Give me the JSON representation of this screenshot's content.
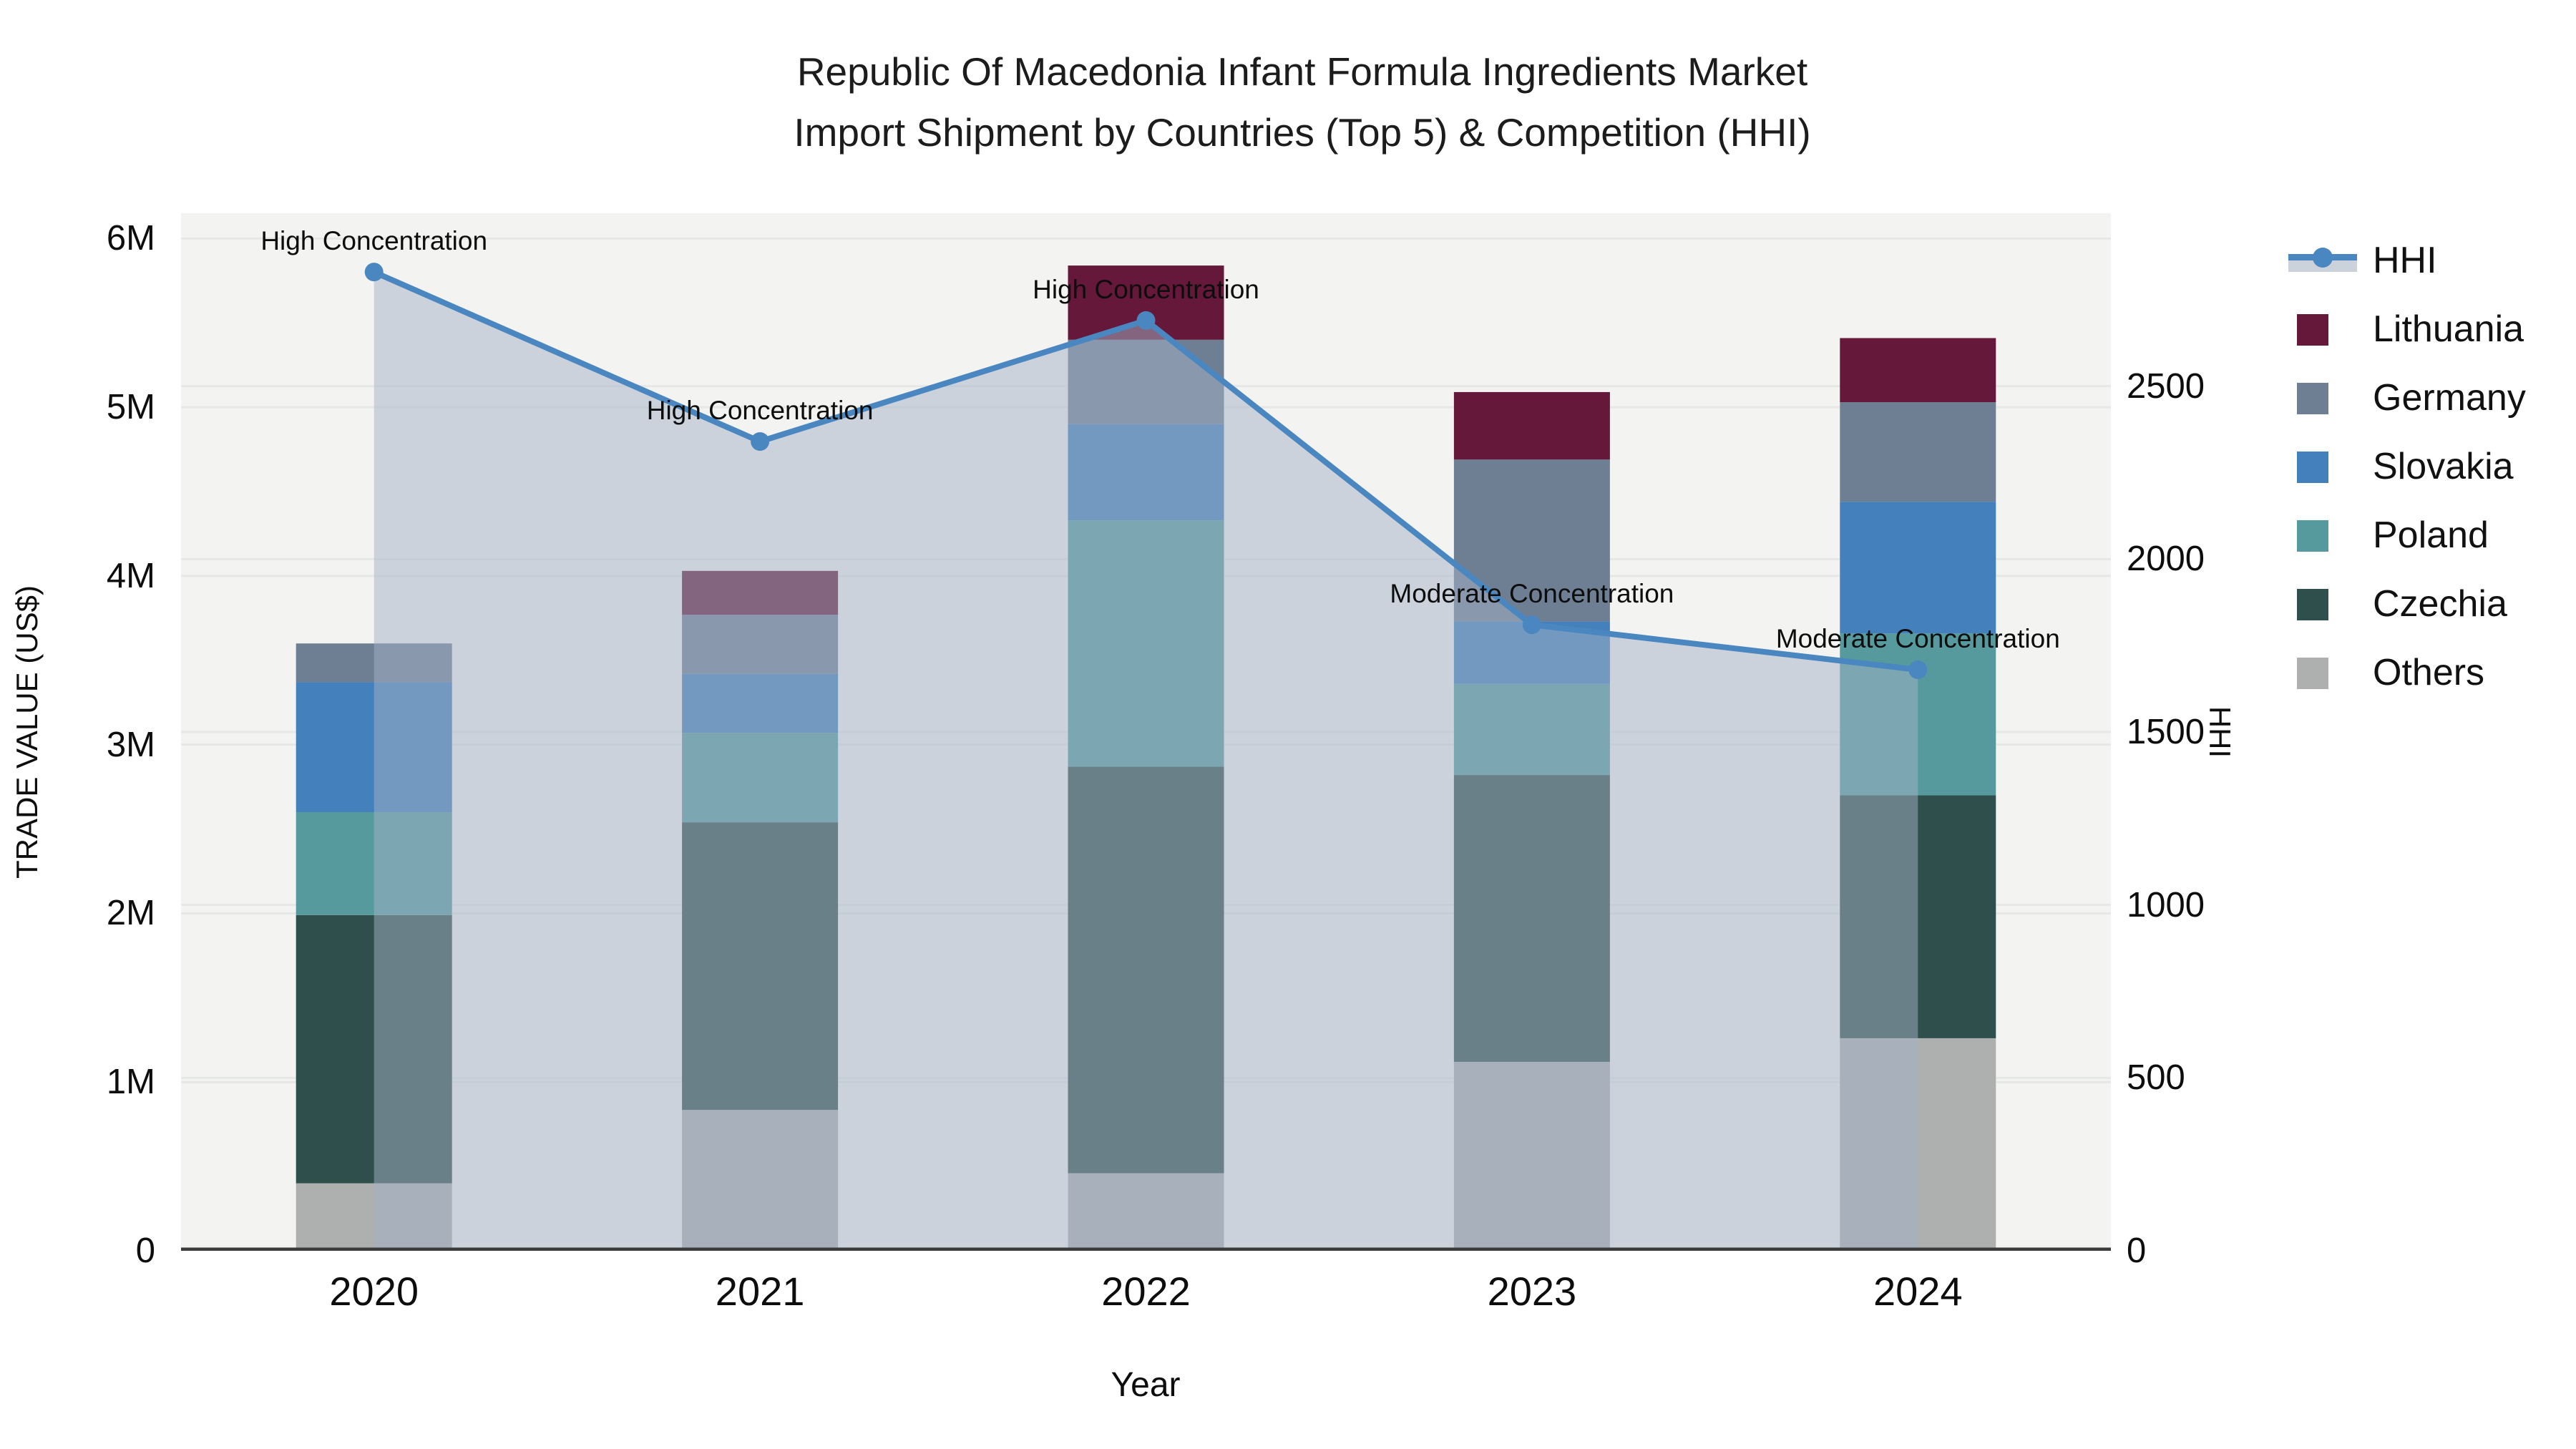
{
  "title": {
    "line1": "Republic Of Macedonia Infant Formula Ingredients Market",
    "line2": "Import Shipment by Countries (Top 5) & Competition (HHI)"
  },
  "axes": {
    "x": {
      "title": "Year",
      "tick_labels": [
        "2020",
        "2021",
        "2022",
        "2023",
        "2024"
      ]
    },
    "y_left": {
      "title": "TRADE VALUE (US$)",
      "tick_labels": [
        "0",
        "1M",
        "2M",
        "3M",
        "4M",
        "5M",
        "6M"
      ],
      "tick_values": [
        0,
        1000000,
        2000000,
        3000000,
        4000000,
        5000000,
        6000000
      ],
      "range": [
        0,
        6150000
      ]
    },
    "y_right": {
      "title": "HHI",
      "tick_labels": [
        "0",
        "500",
        "1000",
        "1500",
        "2000",
        "2500"
      ],
      "tick_values": [
        0,
        500,
        1000,
        1500,
        2000,
        2500
      ],
      "range": [
        0,
        3000
      ]
    }
  },
  "legend": {
    "items": [
      {
        "label": "HHI",
        "type": "line",
        "color": "#4a86bf"
      },
      {
        "label": "Lithuania",
        "type": "swatch",
        "color": "#651839"
      },
      {
        "label": "Germany",
        "type": "swatch",
        "color": "#6f7f93"
      },
      {
        "label": "Slovakia",
        "type": "swatch",
        "color": "#4480bb"
      },
      {
        "label": "Poland",
        "type": "swatch",
        "color": "#579a9e"
      },
      {
        "label": "Czechia",
        "type": "swatch",
        "color": "#2e4f4b"
      },
      {
        "label": "Others",
        "type": "swatch",
        "color": "#adb0ae"
      }
    ]
  },
  "chart_data": {
    "type": "bar+line",
    "title": "Republic Of Macedonia Infant Formula Ingredients Market Import Shipment by Countries (Top 5) & Competition (HHI)",
    "categories": [
      2020,
      2021,
      2022,
      2023,
      2024
    ],
    "bar_unit": "US$",
    "stack_order_bottom_to_top": [
      "Others",
      "Czechia",
      "Poland",
      "Slovakia",
      "Germany",
      "Lithuania"
    ],
    "series": [
      {
        "name": "Others",
        "color": "#adb0ae",
        "values": [
          400000,
          835000,
          460000,
          1120000,
          1260000
        ]
      },
      {
        "name": "Czechia",
        "color": "#2e4f4b",
        "values": [
          1590000,
          1705000,
          2410000,
          1700000,
          1440000
        ]
      },
      {
        "name": "Poland",
        "color": "#579a9e",
        "values": [
          610000,
          530000,
          1460000,
          540000,
          960000
        ]
      },
      {
        "name": "Slovakia",
        "color": "#4480bb",
        "values": [
          770000,
          350000,
          570000,
          370000,
          780000
        ]
      },
      {
        "name": "Germany",
        "color": "#6f7f93",
        "values": [
          230000,
          350000,
          500000,
          960000,
          590000
        ]
      },
      {
        "name": "Lithuania",
        "color": "#651839",
        "values": [
          0,
          260000,
          440000,
          400000,
          380000
        ]
      }
    ],
    "line_series": {
      "name": "HHI",
      "values": [
        2830,
        2340,
        2690,
        1810,
        1680
      ],
      "line_color": "#4a86bf",
      "marker_radius": 13,
      "line_width": 8,
      "area_fill": "rgba(163,177,199,0.50)"
    },
    "annotations": [
      {
        "x": 2020,
        "text": "High Concentration"
      },
      {
        "x": 2021,
        "text": "High Concentration"
      },
      {
        "x": 2022,
        "text": "High Concentration"
      },
      {
        "x": 2023,
        "text": "Moderate Concentration"
      },
      {
        "x": 2024,
        "text": "Moderate Concentration"
      }
    ],
    "layout": {
      "grid": true,
      "legend_position": "right",
      "plot_bg": "#f3f3f1",
      "grid_color": "#e6e8e6",
      "axis_line_color": "#3a3a3a"
    }
  }
}
